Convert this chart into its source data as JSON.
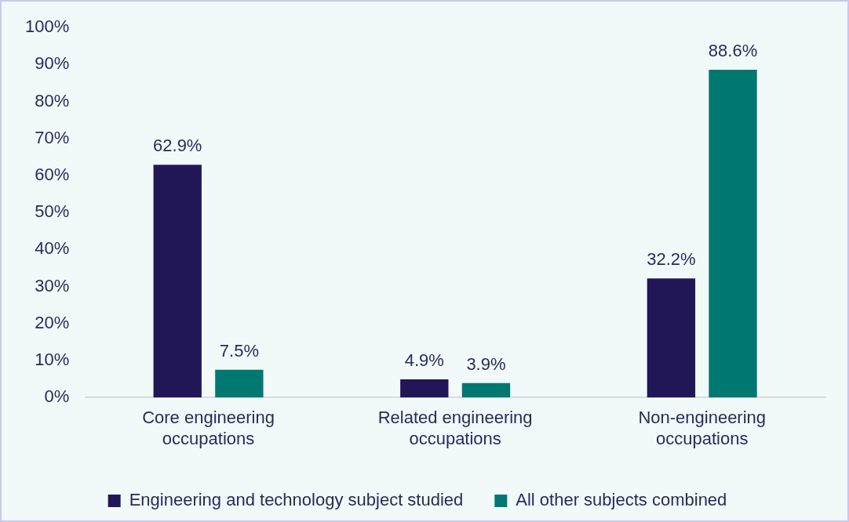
{
  "chart_data": {
    "type": "bar",
    "categories": [
      "Core engineering occupations",
      "Related engineering occupations",
      "Non-engineering occupations"
    ],
    "series": [
      {
        "name": "Engineering and technology subject studied",
        "color": "#211757",
        "values": [
          62.9,
          4.9,
          32.2
        ],
        "value_labels": [
          "62.9%",
          "4.9%",
          "32.2%"
        ]
      },
      {
        "name": "All other subjects combined",
        "color": "#007872",
        "values": [
          7.5,
          3.9,
          88.6
        ],
        "value_labels": [
          "7.5%",
          "3.9%",
          "88.6%"
        ]
      }
    ],
    "ylim": [
      0,
      100
    ],
    "yticks": [
      {
        "value": 0,
        "label": "0%"
      },
      {
        "value": 10,
        "label": "10%"
      },
      {
        "value": 20,
        "label": "20%"
      },
      {
        "value": 30,
        "label": "30%"
      },
      {
        "value": 40,
        "label": "40%"
      },
      {
        "value": 50,
        "label": "50%"
      },
      {
        "value": 60,
        "label": "60%"
      },
      {
        "value": 70,
        "label": "70%"
      },
      {
        "value": 80,
        "label": "80%"
      },
      {
        "value": 90,
        "label": "90%"
      },
      {
        "value": 100,
        "label": "100%"
      }
    ],
    "grid": false,
    "legend": "bottom"
  }
}
